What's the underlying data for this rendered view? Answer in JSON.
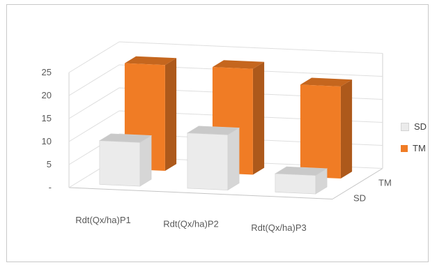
{
  "chart_data": {
    "type": "bar",
    "categories": [
      "Rdt(Qx/ha)P1",
      "Rdt(Qx/ha)P2",
      "Rdt(Qx/ha)P3"
    ],
    "series": [
      {
        "name": "SD",
        "values": [
          9.5,
          12,
          4
        ],
        "color": "#ebebeb"
      },
      {
        "name": "TM",
        "values": [
          23,
          23,
          20
        ],
        "color": "#f07c25"
      }
    ],
    "ylim": [
      0,
      25
    ],
    "y_ticks": [
      "-",
      "5",
      "10",
      "15",
      "20",
      "25"
    ],
    "depth_labels": [
      "TM",
      "SD"
    ],
    "grid": true,
    "legend_position": "right"
  }
}
